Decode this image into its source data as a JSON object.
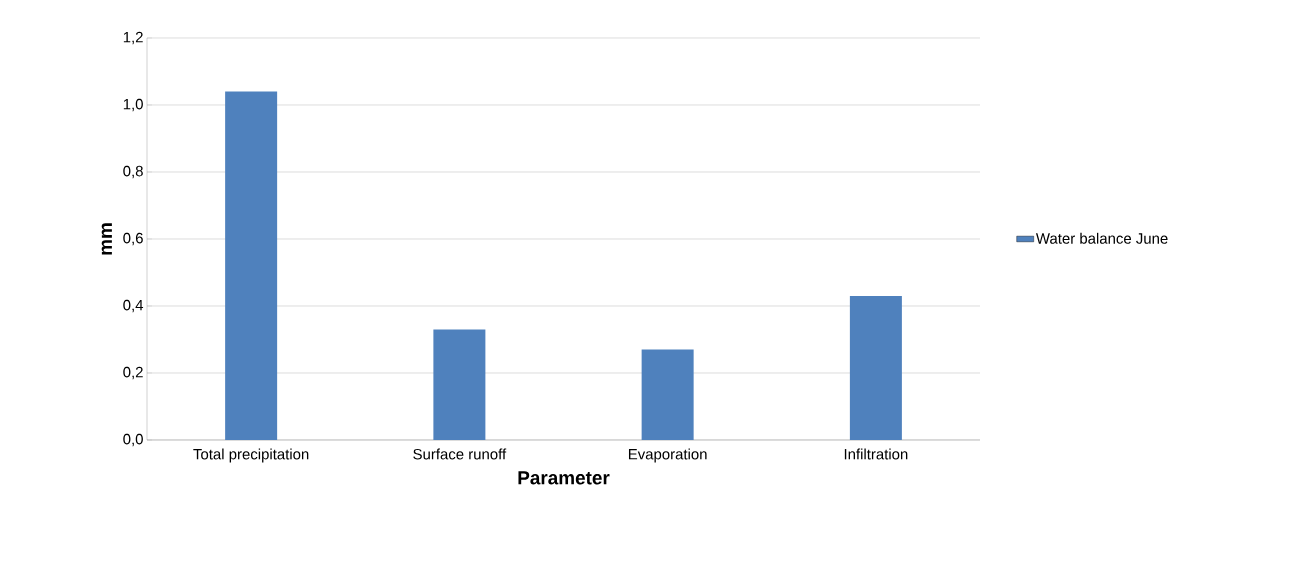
{
  "chart_data": {
    "type": "bar",
    "xlabel": "Parameter",
    "ylabel": "mm",
    "categories": [
      "Total precipitation",
      "Surface runoff",
      "Evaporation",
      "Infiltration"
    ],
    "series": [
      {
        "name": "Water balance June",
        "color": "#4f81bd",
        "values": [
          1.04,
          0.33,
          0.27,
          0.43
        ]
      }
    ],
    "ylim": [
      0,
      1.2
    ],
    "yticks": [
      {
        "value": 0,
        "label": "0,0"
      },
      {
        "value": 0.2,
        "label": "0,2"
      },
      {
        "value": 0.4,
        "label": "0,4"
      },
      {
        "value": 0.6,
        "label": "0,6"
      },
      {
        "value": 0.8,
        "label": "0,8"
      },
      {
        "value": 1.0,
        "label": "1,0"
      },
      {
        "value": 1.2,
        "label": "1,2"
      }
    ],
    "grid": "y",
    "legend": "right"
  }
}
